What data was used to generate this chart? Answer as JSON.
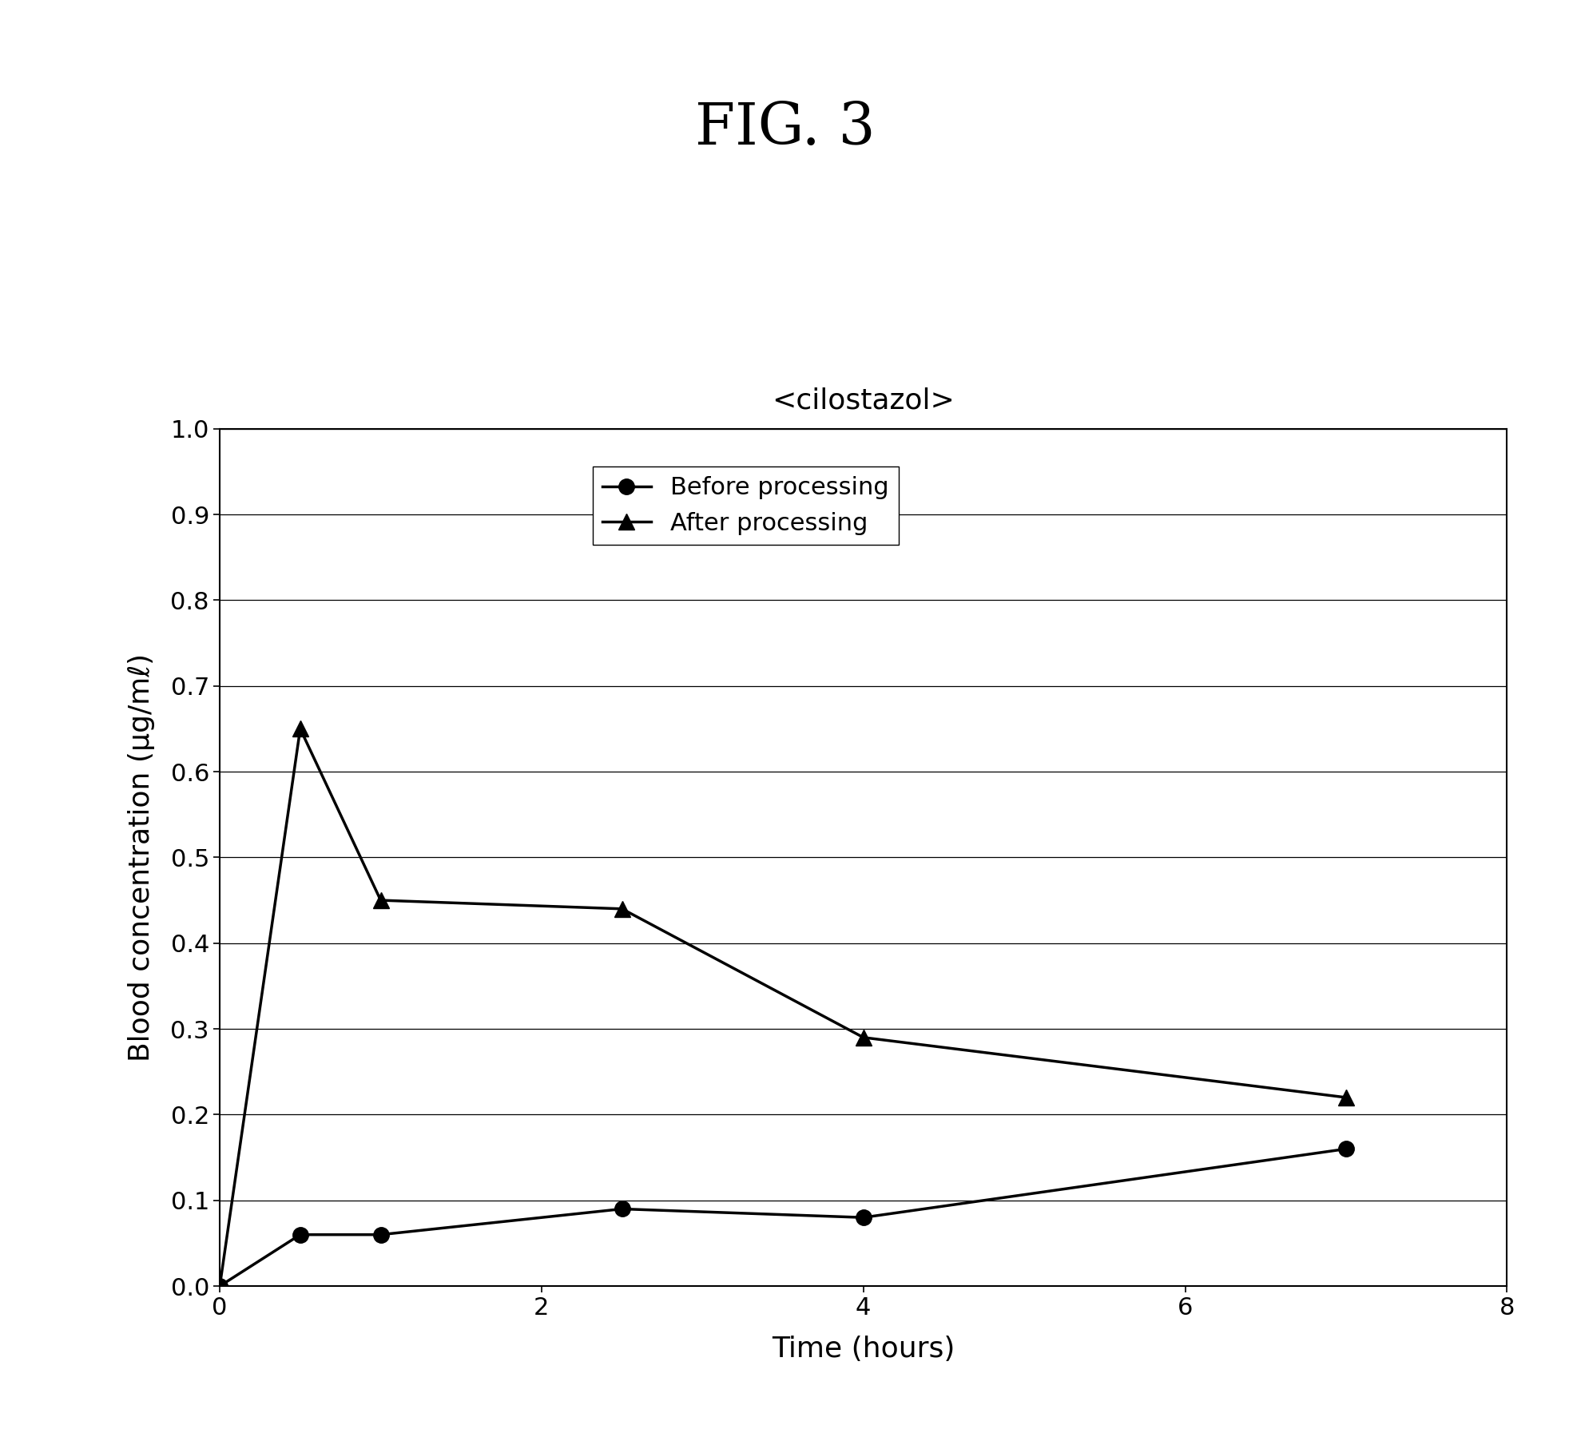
{
  "title": "FIG. 3",
  "chart_title": "<cilostazol>",
  "xlabel": "Time (hours)",
  "ylabel": "Blood concentration (μg/mℓ)",
  "before_x": [
    0,
    0.5,
    1.0,
    2.5,
    4.0,
    7.0
  ],
  "before_y": [
    0.0,
    0.06,
    0.06,
    0.09,
    0.08,
    0.16
  ],
  "after_x": [
    0,
    0.5,
    1.0,
    2.5,
    4.0,
    7.0
  ],
  "after_y": [
    0.0,
    0.65,
    0.45,
    0.44,
    0.29,
    0.22
  ],
  "xlim": [
    0,
    8
  ],
  "ylim": [
    0.0,
    1.0
  ],
  "xticks": [
    0,
    2,
    4,
    6,
    8
  ],
  "yticks": [
    0.0,
    0.1,
    0.2,
    0.3,
    0.4,
    0.5,
    0.6,
    0.7,
    0.8,
    0.9,
    1.0
  ],
  "line_color": "#000000",
  "marker_before": "o",
  "marker_after": "^",
  "legend_before": "Before processing",
  "legend_after": "After processing",
  "title_fontsize": 52,
  "chart_title_fontsize": 26,
  "axis_label_fontsize": 26,
  "tick_fontsize": 22,
  "legend_fontsize": 22,
  "background_color": "#ffffff",
  "linewidth": 2.5,
  "markersize": 14
}
